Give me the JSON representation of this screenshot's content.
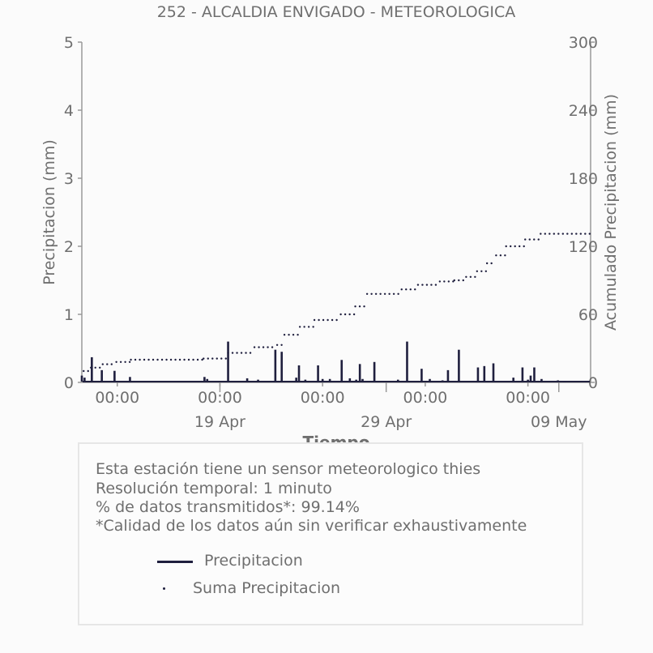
{
  "chart_data": {
    "type": "line",
    "title": "252 - ALCALDIA ENVIGADO - METEOROLOGICA",
    "xlabel": "Tiempo",
    "ylabel": "Precipitacion (mm)",
    "y2label": "Acumulado Precipitacion (mm)",
    "ylim": [
      0,
      5
    ],
    "y2lim": [
      0,
      300
    ],
    "yticks": [
      "0",
      "1",
      "2",
      "3",
      "4",
      "5"
    ],
    "y2ticks": [
      "0",
      "60",
      "120",
      "180",
      "240",
      "300"
    ],
    "xticks_time": [
      "00:00",
      "00:00",
      "00:00",
      "00:00",
      "00:00"
    ],
    "xticks_date": [
      "19 Apr",
      "29 Apr",
      "09 May"
    ],
    "grid": false,
    "series": [
      {
        "name": "Precipitacion",
        "x": [
          0.0,
          0.3,
          1.1,
          2.2,
          3.6,
          5.3,
          10.6,
          13.5,
          13.8,
          16.1,
          18.2,
          19.4,
          21.3,
          22.0,
          23.6,
          23.9,
          24.6,
          26.0,
          26.5,
          27.3,
          28.6,
          29.5,
          30.2,
          30.6,
          30.9,
          32.2,
          34.8,
          35.8,
          37.4,
          38.3,
          39.7,
          40.3,
          41.5,
          43.6,
          44.3,
          45.3,
          47.5,
          48.5,
          49.1,
          49.4,
          49.8,
          50.6,
          52.4,
          53.1,
          55.5
        ],
        "values": [
          0.1,
          0.07,
          0.37,
          0.18,
          0.17,
          0.08,
          0.02,
          0.08,
          0.05,
          0.6,
          0.06,
          0.04,
          0.48,
          0.45,
          0.07,
          0.25,
          0.04,
          0.25,
          0.05,
          0.05,
          0.33,
          0.06,
          0.04,
          0.27,
          0.05,
          0.3,
          0.04,
          0.6,
          0.2,
          0.05,
          0.03,
          0.18,
          0.48,
          0.22,
          0.24,
          0.28,
          0.07,
          0.22,
          0.04,
          0.1,
          0.22,
          0.05,
          0.03,
          0.01,
          0.0
        ]
      },
      {
        "name": "Suma Precipitacion",
        "x": [
          0.2,
          1.0,
          2.3,
          3.8,
          5.4,
          13.4,
          16.1,
          19.0,
          21.5,
          22.3,
          24.0,
          25.6,
          28.5,
          30.1,
          31.4,
          35.2,
          37.0,
          39.4,
          41.0,
          42.3,
          43.5,
          44.6,
          45.6,
          46.7,
          48.8,
          50.5
        ],
        "values": [
          10,
          13,
          16,
          18,
          20,
          21,
          26,
          31,
          33,
          42,
          49,
          55,
          60,
          67,
          78,
          82,
          86,
          89,
          90,
          93,
          98,
          105,
          112,
          120,
          126,
          131
        ]
      }
    ]
  },
  "info": {
    "line1": "Esta estación tiene un sensor meteorologico thies",
    "line2": "Resolución temporal: 1 minuto",
    "line3": "% de datos transmitidos*: 99.14%",
    "line4": "*Calidad de los datos aún sin verificar exhaustivamente"
  },
  "legend": {
    "item1": "Precipitacion",
    "item2": "Suma Precipitacion"
  },
  "colors": {
    "series": "#1f1f3e",
    "text": "#6f6f6f",
    "axis": "#999999",
    "box_border": "#e6e6e6"
  }
}
